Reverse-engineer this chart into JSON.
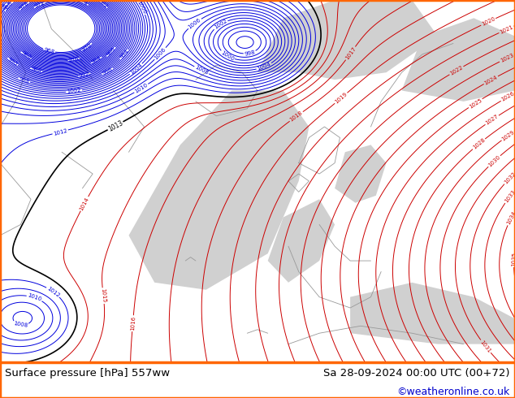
{
  "title_left": "Surface pressure [hPa] 557ww",
  "title_right": "Sa 28-09-2024 00:00 UTC (00+72)",
  "credit": "©weatheronline.co.uk",
  "fig_width": 6.34,
  "fig_height": 4.9,
  "dpi": 100,
  "map_bg_land": "#c8dba0",
  "map_bg_ocean": "#d0d0d0",
  "border_color": "#ff6600",
  "bottom_bar_color": "#ffffff",
  "bottom_bar_height": 0.09,
  "text_color_left": "#000000",
  "text_color_right": "#000000",
  "credit_color": "#0000cc",
  "blue_contour_color": "#0000dd",
  "red_contour_color": "#cc0000",
  "black_contour_color": "#000000",
  "font_size_bottom": 9.5,
  "font_size_credit": 9,
  "coast_color": "#999999"
}
